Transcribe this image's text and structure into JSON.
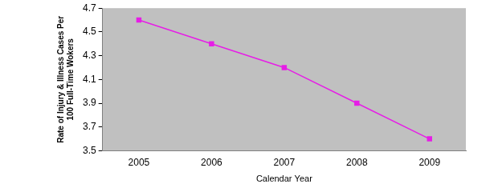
{
  "chart_data": {
    "type": "line",
    "x_label": "Calendar Year",
    "y_label": [
      "Rate of Injury & Illness Cases Per",
      "100 Full-Time Wokers"
    ],
    "categories": [
      "2005",
      "2006",
      "2007",
      "2008",
      "2009"
    ],
    "values": [
      4.6,
      4.4,
      4.2,
      3.9,
      3.6
    ],
    "color": "#e61ee6",
    "marker": "square",
    "line_style": "solid",
    "ylim": [
      3.5,
      4.7
    ],
    "yticks": [
      3.5,
      3.7,
      3.9,
      4.1,
      4.3,
      4.5,
      4.7
    ],
    "grid": false
  }
}
